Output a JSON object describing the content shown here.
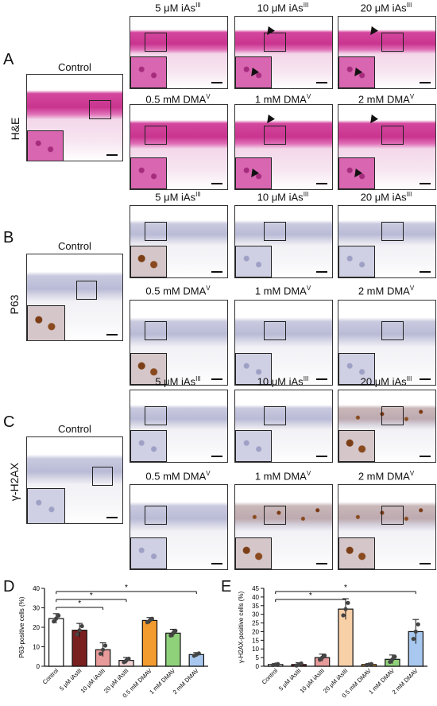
{
  "panel_letters": [
    "A",
    "B",
    "C",
    "D",
    "E"
  ],
  "stains": [
    "H&E",
    "P63",
    "γ-H2AX"
  ],
  "control_label": "Control",
  "treatment_titles": {
    "row1": [
      {
        "main": "5 μM iAs",
        "sup": "III"
      },
      {
        "main": "10 μM iAs",
        "sup": "III"
      },
      {
        "main": "20 μM iAs",
        "sup": "III"
      }
    ],
    "row2": [
      {
        "main": "0.5 mM DMA",
        "sup": "V"
      },
      {
        "main": "1 mM DMA",
        "sup": "V"
      },
      {
        "main": "2 mM DMA",
        "sup": "V"
      }
    ]
  },
  "chart_data": [
    {
      "type": "bar",
      "panel": "D",
      "ylabel": "P63-positive cells (%)",
      "ylim": [
        0,
        40
      ],
      "yticks": [
        "0",
        "10",
        "20",
        "30",
        "40"
      ],
      "categories": [
        "Control",
        "5 μM iAsIII",
        "10 μM iAsIII",
        "20 μM iAsIII",
        "0.5 mM DMAV",
        "1 mM DMAV",
        "2 mM DMAV"
      ],
      "values": [
        24.5,
        18.5,
        8.5,
        3,
        23.5,
        17,
        6
      ],
      "errors": [
        2.5,
        3.5,
        3.5,
        1.5,
        1.5,
        2,
        1
      ],
      "colors": [
        "#ffffff",
        "#7a1f1f",
        "#e79a9a",
        "#f2d2d2",
        "#f29b2e",
        "#8fd17a",
        "#a8c8ef"
      ],
      "significance": [
        {
          "from": 0,
          "to": 2,
          "label": "*"
        },
        {
          "from": 0,
          "to": 3,
          "label": "*"
        },
        {
          "from": 0,
          "to": 6,
          "label": "*"
        }
      ]
    },
    {
      "type": "bar",
      "panel": "E",
      "ylabel": "γ-H2AX-positive cells (%)",
      "ylim": [
        0,
        45
      ],
      "yticks": [
        "0",
        "5",
        "10",
        "15",
        "20",
        "25",
        "30",
        "35",
        "40",
        "45"
      ],
      "categories": [
        "Control",
        "5 μM iAsIII",
        "10 μM iAsIII",
        "20 μM iAsIII",
        "0.5 mM DMAV",
        "1 mM DMAV",
        "2 mM DMAV"
      ],
      "values": [
        1,
        1,
        5,
        33,
        1,
        4,
        20
      ],
      "errors": [
        0.5,
        1,
        2,
        6,
        0.5,
        2.5,
        7
      ],
      "colors": [
        "#ffffff",
        "#7a1f1f",
        "#e79a9a",
        "#f8d0a8",
        "#f29b2e",
        "#8fd17a",
        "#a8c8ef"
      ],
      "significance": [
        {
          "from": 0,
          "to": 3,
          "label": "*"
        },
        {
          "from": 0,
          "to": 6,
          "label": "*"
        }
      ]
    }
  ]
}
